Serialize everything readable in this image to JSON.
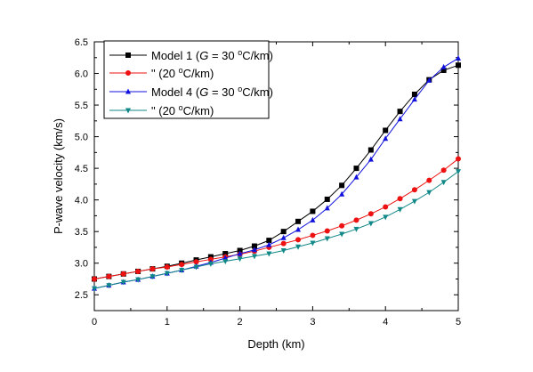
{
  "chart_data": {
    "type": "line",
    "xlabel": "Depth (km)",
    "ylabel": "P-wave velocity (km/s)",
    "xlim": [
      0,
      5
    ],
    "ylim": [
      2.25,
      6.5
    ],
    "xticks": [
      0,
      1,
      2,
      3,
      4,
      5
    ],
    "yticks": [
      2.5,
      3.0,
      3.5,
      4.0,
      4.5,
      5.0,
      5.5,
      6.0,
      6.5
    ],
    "grid": false,
    "legend_position": "top-left",
    "x": [
      0,
      0.2,
      0.4,
      0.6,
      0.8,
      1.0,
      1.2,
      1.4,
      1.6,
      1.8,
      2.0,
      2.2,
      2.4,
      2.6,
      2.8,
      3.0,
      3.2,
      3.4,
      3.6,
      3.8,
      4.0,
      4.2,
      4.4,
      4.6,
      4.8,
      5.0
    ],
    "series": [
      {
        "legend_parts": [
          "Model 1 (",
          "G",
          " = 30 ",
          "o",
          "C/km)"
        ],
        "color": "#000000",
        "marker": "square",
        "values": [
          2.75,
          2.79,
          2.83,
          2.87,
          2.91,
          2.95,
          3.0,
          3.05,
          3.1,
          3.15,
          3.2,
          3.27,
          3.36,
          3.5,
          3.66,
          3.82,
          4.01,
          4.23,
          4.5,
          4.79,
          5.1,
          5.4,
          5.67,
          5.9,
          6.05,
          6.13
        ]
      },
      {
        "legend_parts": [
          "\"",
          "",
          "        (20 ",
          "o",
          "C/km)"
        ],
        "color": "#ee1111",
        "marker": "circle",
        "values": [
          2.75,
          2.79,
          2.83,
          2.87,
          2.91,
          2.94,
          2.98,
          3.02,
          3.06,
          3.1,
          3.14,
          3.19,
          3.25,
          3.31,
          3.37,
          3.44,
          3.51,
          3.59,
          3.68,
          3.78,
          3.89,
          4.02,
          4.16,
          4.31,
          4.47,
          4.65
        ]
      },
      {
        "legend_parts": [
          "Model 4 (",
          "G",
          " = 30 ",
          "o",
          "C/km)"
        ],
        "color": "#1111dd",
        "marker": "triangle-up",
        "values": [
          2.6,
          2.65,
          2.7,
          2.74,
          2.79,
          2.84,
          2.89,
          2.95,
          3.01,
          3.08,
          3.15,
          3.21,
          3.29,
          3.4,
          3.53,
          3.68,
          3.87,
          4.09,
          4.36,
          4.64,
          4.97,
          5.28,
          5.59,
          5.89,
          6.1,
          6.24
        ]
      },
      {
        "legend_parts": [
          "\"",
          "",
          "        (",
          "20 ",
          "o",
          "C/km)"
        ],
        "color": "#118888",
        "marker": "triangle-down",
        "values": [
          2.6,
          2.65,
          2.7,
          2.74,
          2.79,
          2.84,
          2.89,
          2.94,
          2.99,
          3.03,
          3.07,
          3.11,
          3.15,
          3.2,
          3.26,
          3.32,
          3.39,
          3.46,
          3.54,
          3.63,
          3.73,
          3.85,
          3.98,
          4.12,
          4.28,
          4.45
        ]
      }
    ]
  }
}
